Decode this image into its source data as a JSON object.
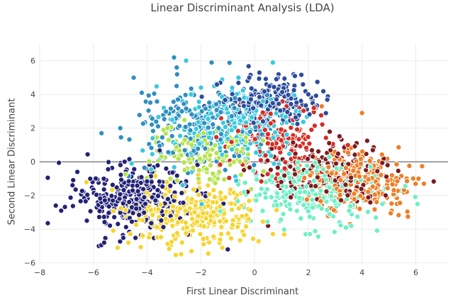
{
  "chart_data": {
    "type": "scatter",
    "title": "Linear Discriminant Analysis (LDA)",
    "xlabel": "First Linear Discriminant",
    "ylabel": "Second Linear Discriminant",
    "xlim": [
      -8.0,
      7.2
    ],
    "ylim": [
      -6.1,
      7.0
    ],
    "xticks": [
      -8,
      -6,
      -4,
      -2,
      0,
      2,
      4,
      6
    ],
    "yticks": [
      -6,
      -4,
      -2,
      0,
      2,
      4,
      6
    ],
    "xtick_labels": [
      "−8",
      "−6",
      "−4",
      "−2",
      "0",
      "2",
      "4",
      "6"
    ],
    "ytick_labels": [
      "−6",
      "−4",
      "−2",
      "0",
      "2",
      "4",
      "6"
    ],
    "grid": true,
    "legend": "none",
    "marker_edge_color": "#ffffff",
    "series": [
      {
        "color": "#232277",
        "center": [
          -4.6,
          -2.1
        ],
        "spread": [
          1.05,
          1.0
        ],
        "count": 330,
        "extremes": [
          [
            -7.4,
            -2.6
          ],
          [
            -7.2,
            -2.9
          ],
          [
            -5.8,
            -5.0
          ],
          [
            -6.6,
            -0.6
          ],
          [
            -1.0,
            -5.2
          ],
          [
            -5.6,
            -4.8
          ]
        ]
      },
      {
        "color": "#2e8fbf",
        "center": [
          -2.2,
          2.2
        ],
        "spread": [
          1.1,
          1.2
        ],
        "count": 190,
        "extremes": [
          [
            -3.0,
            6.2
          ],
          [
            -4.5,
            5.0
          ],
          [
            -5.0,
            2.0
          ],
          [
            -5.7,
            1.7
          ],
          [
            -4.2,
            4.1
          ],
          [
            -2.9,
            5.6
          ],
          [
            -1.6,
            5.9
          ]
        ]
      },
      {
        "color": "#2b4c9c",
        "center": [
          0.6,
          3.6
        ],
        "spread": [
          0.9,
          0.75
        ],
        "count": 200,
        "extremes": [
          [
            1.5,
            5.1
          ],
          [
            -0.2,
            5.0
          ],
          [
            1.8,
            4.6
          ]
        ]
      },
      {
        "color": "#37c9dd",
        "center": [
          -0.9,
          2.0
        ],
        "spread": [
          1.3,
          1.2
        ],
        "count": 240,
        "extremes": [
          [
            -0.6,
            5.0
          ],
          [
            -1.5,
            4.5
          ]
        ]
      },
      {
        "color": "#d62d24",
        "center": [
          0.8,
          1.4
        ],
        "spread": [
          0.9,
          1.0
        ],
        "count": 150,
        "extremes": [
          [
            -0.5,
            3.5
          ],
          [
            2.5,
            -0.6
          ]
        ]
      },
      {
        "color": "#b5e34a",
        "center": [
          -1.8,
          0.3
        ],
        "spread": [
          1.0,
          0.9
        ],
        "count": 130,
        "extremes": [
          [
            -3.2,
            1.3
          ]
        ]
      },
      {
        "color": "#f5d52e",
        "center": [
          -2.2,
          -3.1
        ],
        "spread": [
          1.2,
          0.9
        ],
        "count": 300,
        "extremes": [
          [
            -5.1,
            -5.1
          ],
          [
            -1.2,
            -5.1
          ],
          [
            -4.7,
            -4.8
          ]
        ]
      },
      {
        "color": "#6ef0c4",
        "center": [
          2.2,
          -1.9
        ],
        "spread": [
          1.3,
          0.9
        ],
        "count": 230,
        "extremes": [
          [
            1.9,
            -4.3
          ],
          [
            3.4,
            -3.9
          ]
        ]
      },
      {
        "color": "#7e1b1f",
        "center": [
          2.7,
          -0.6
        ],
        "spread": [
          1.2,
          1.0
        ],
        "count": 160,
        "extremes": [
          [
            0.5,
            -3.8
          ],
          [
            4.4,
            0.7
          ]
        ]
      },
      {
        "color": "#f07d26",
        "center": [
          3.9,
          -1.2
        ],
        "spread": [
          1.0,
          0.85
        ],
        "count": 230,
        "extremes": [
          [
            6.1,
            -1.0
          ],
          [
            6.3,
            -1.3
          ],
          [
            4.0,
            2.9
          ],
          [
            2.5,
            3.3
          ],
          [
            5.3,
            -2.5
          ]
        ]
      }
    ]
  }
}
